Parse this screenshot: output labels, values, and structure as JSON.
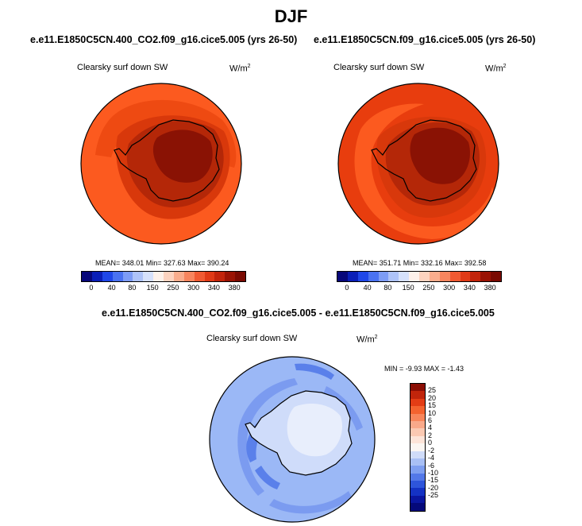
{
  "figure": {
    "title": "DJF"
  },
  "panels": [
    {
      "case": "e.e11.E1850C5CN.400_CO2.f09_g16.cice5.005 (yrs 26-50)",
      "variable": "Clearsky surf down SW",
      "units": "W/m",
      "units_exp": "2",
      "stats": "MEAN= 348.01  Min= 327.63  Max= 390.24",
      "colors": {
        "ocean": "#fc5a1f",
        "ring": "#ee4a12",
        "coast": "#d8380b",
        "ice": "#b42708",
        "interior": "#8a1204"
      }
    },
    {
      "case": "e.e11.E1850C5CN.f09_g16.cice5.005 (yrs 26-50)",
      "variable": "Clearsky surf down SW",
      "units": "W/m",
      "units_exp": "2",
      "stats": "MEAN= 351.71  Min= 332.16  Max= 392.58",
      "colors": {
        "ocean": "#e83d0e",
        "ring": "#fc5a1f",
        "coast": "#d8380b",
        "ice": "#b42708",
        "interior": "#8a1204"
      }
    }
  ],
  "diff_panel": {
    "case": "e.e11.E1850C5CN.400_CO2.f09_g16.cice5.005 - e.e11.E1850C5CN.f09_g16.cice5.005",
    "variable": "Clearsky surf down SW",
    "units": "W/m",
    "units_exp": "2",
    "stats": "MIN = -9.93  MAX = -1.43",
    "colors": {
      "ocean": "#9bb8f6",
      "band": "#7b9bf0",
      "shelf": "#5a80ea",
      "land": "#cfdcfa",
      "interior": "#e8eefc"
    }
  },
  "colorbar_abs": {
    "labels": [
      "0",
      "40",
      "80",
      "150",
      "250",
      "300",
      "340",
      "380"
    ],
    "colors": [
      "#08087a",
      "#0a1fb8",
      "#1f47e8",
      "#4a72f0",
      "#7d9cf5",
      "#aec3f8",
      "#d6e1fb",
      "#fdf1ea",
      "#fcd3bf",
      "#f9ad8d",
      "#f7855e",
      "#f05a32",
      "#e03a16",
      "#c2240b",
      "#9a1304",
      "#7a0a02"
    ]
  },
  "colorbar_diff": {
    "labels": [
      "25",
      "20",
      "15",
      "10",
      "6",
      "4",
      "2",
      "0",
      "-2",
      "-4",
      "-6",
      "-10",
      "-15",
      "-20",
      "-25"
    ],
    "colors": [
      "#8b0e04",
      "#c1250b",
      "#e33d15",
      "#f4632f",
      "#f8865b",
      "#f9a98a",
      "#fbc9b2",
      "#fde4d8",
      "#fbf6f2",
      "#d0dcf9",
      "#a9c0f5",
      "#7f9ff0",
      "#5378e8",
      "#2e55db",
      "#1432c4",
      "#0a16a0",
      "#05097a"
    ]
  }
}
